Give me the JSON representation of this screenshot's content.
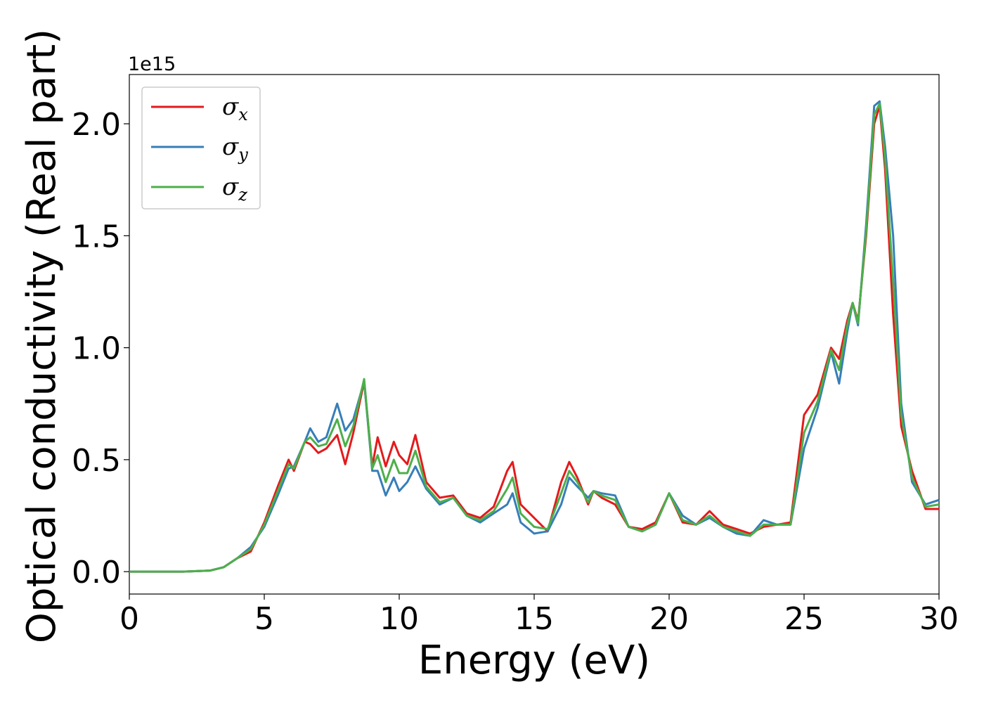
{
  "chart_data": {
    "type": "line",
    "xlabel": "Energy (eV)",
    "ylabel": "Optical conductivity (Real part)",
    "y_offset_label": "1e15",
    "xlim": [
      0,
      30
    ],
    "ylim": [
      -0.1,
      2.22
    ],
    "x_ticks": [
      0,
      5,
      10,
      15,
      20,
      25,
      30
    ],
    "x_tick_labels": [
      "0",
      "5",
      "10",
      "15",
      "20",
      "25",
      "30"
    ],
    "y_ticks": [
      0.0,
      0.5,
      1.0,
      1.5,
      2.0
    ],
    "y_tick_labels": [
      "0.0",
      "0.5",
      "1.0",
      "1.5",
      "2.0"
    ],
    "grid": false,
    "legend_position": "top-left",
    "x": [
      0,
      1,
      2,
      3,
      3.5,
      4,
      4.5,
      5,
      5.5,
      5.9,
      6.1,
      6.5,
      6.7,
      7,
      7.3,
      7.7,
      8,
      8.3,
      8.7,
      9,
      9.2,
      9.5,
      9.8,
      10,
      10.3,
      10.6,
      11,
      11.5,
      12,
      12.5,
      13,
      13.5,
      14,
      14.2,
      14.5,
      15,
      15.5,
      16,
      16.3,
      16.6,
      17,
      17.2,
      17.5,
      18,
      18.5,
      19,
      19.5,
      20,
      20.5,
      21,
      21.5,
      22,
      22.5,
      23,
      23.5,
      24,
      24.5,
      25,
      25.5,
      26,
      26.3,
      26.6,
      26.8,
      27,
      27.3,
      27.6,
      27.8,
      28,
      28.3,
      28.6,
      29,
      29.5,
      30
    ],
    "series": [
      {
        "name": "σ",
        "subscript": "x",
        "color": "#e41a1c",
        "values": [
          0,
          0,
          0,
          0.005,
          0.02,
          0.06,
          0.09,
          0.22,
          0.38,
          0.5,
          0.45,
          0.58,
          0.57,
          0.53,
          0.55,
          0.61,
          0.48,
          0.62,
          0.85,
          0.47,
          0.6,
          0.47,
          0.58,
          0.52,
          0.48,
          0.61,
          0.4,
          0.33,
          0.34,
          0.26,
          0.24,
          0.29,
          0.45,
          0.49,
          0.3,
          0.24,
          0.18,
          0.4,
          0.49,
          0.42,
          0.3,
          0.36,
          0.33,
          0.3,
          0.2,
          0.19,
          0.22,
          0.35,
          0.22,
          0.21,
          0.27,
          0.21,
          0.19,
          0.17,
          0.2,
          0.21,
          0.22,
          0.7,
          0.79,
          1.0,
          0.95,
          1.12,
          1.2,
          1.12,
          1.5,
          2.0,
          2.08,
          1.8,
          1.15,
          0.65,
          0.45,
          0.28,
          0.28
        ]
      },
      {
        "name": "σ",
        "subscript": "y",
        "color": "#377eb8",
        "values": [
          0,
          0,
          0,
          0.005,
          0.02,
          0.06,
          0.11,
          0.2,
          0.34,
          0.46,
          0.47,
          0.58,
          0.64,
          0.58,
          0.6,
          0.75,
          0.63,
          0.68,
          0.85,
          0.45,
          0.45,
          0.34,
          0.42,
          0.36,
          0.4,
          0.47,
          0.37,
          0.3,
          0.33,
          0.25,
          0.22,
          0.26,
          0.3,
          0.35,
          0.22,
          0.17,
          0.18,
          0.3,
          0.42,
          0.38,
          0.33,
          0.36,
          0.35,
          0.34,
          0.2,
          0.18,
          0.21,
          0.35,
          0.25,
          0.21,
          0.24,
          0.2,
          0.17,
          0.16,
          0.23,
          0.21,
          0.21,
          0.55,
          0.73,
          0.98,
          0.84,
          1.07,
          1.2,
          1.1,
          1.55,
          2.08,
          2.1,
          1.9,
          1.5,
          0.75,
          0.4,
          0.3,
          0.32
        ]
      },
      {
        "name": "σ",
        "subscript": "z",
        "color": "#4daf4a",
        "values": [
          0,
          0,
          0,
          0.005,
          0.02,
          0.06,
          0.1,
          0.21,
          0.36,
          0.48,
          0.46,
          0.58,
          0.6,
          0.56,
          0.57,
          0.68,
          0.56,
          0.65,
          0.86,
          0.46,
          0.52,
          0.4,
          0.5,
          0.44,
          0.44,
          0.54,
          0.38,
          0.31,
          0.33,
          0.25,
          0.23,
          0.27,
          0.37,
          0.42,
          0.26,
          0.2,
          0.19,
          0.35,
          0.45,
          0.4,
          0.31,
          0.36,
          0.34,
          0.32,
          0.2,
          0.18,
          0.21,
          0.35,
          0.23,
          0.21,
          0.25,
          0.2,
          0.18,
          0.16,
          0.21,
          0.21,
          0.21,
          0.62,
          0.76,
          0.99,
          0.9,
          1.1,
          1.2,
          1.11,
          1.52,
          2.04,
          2.09,
          1.85,
          1.3,
          0.7,
          0.42,
          0.29,
          0.3
        ]
      }
    ]
  }
}
